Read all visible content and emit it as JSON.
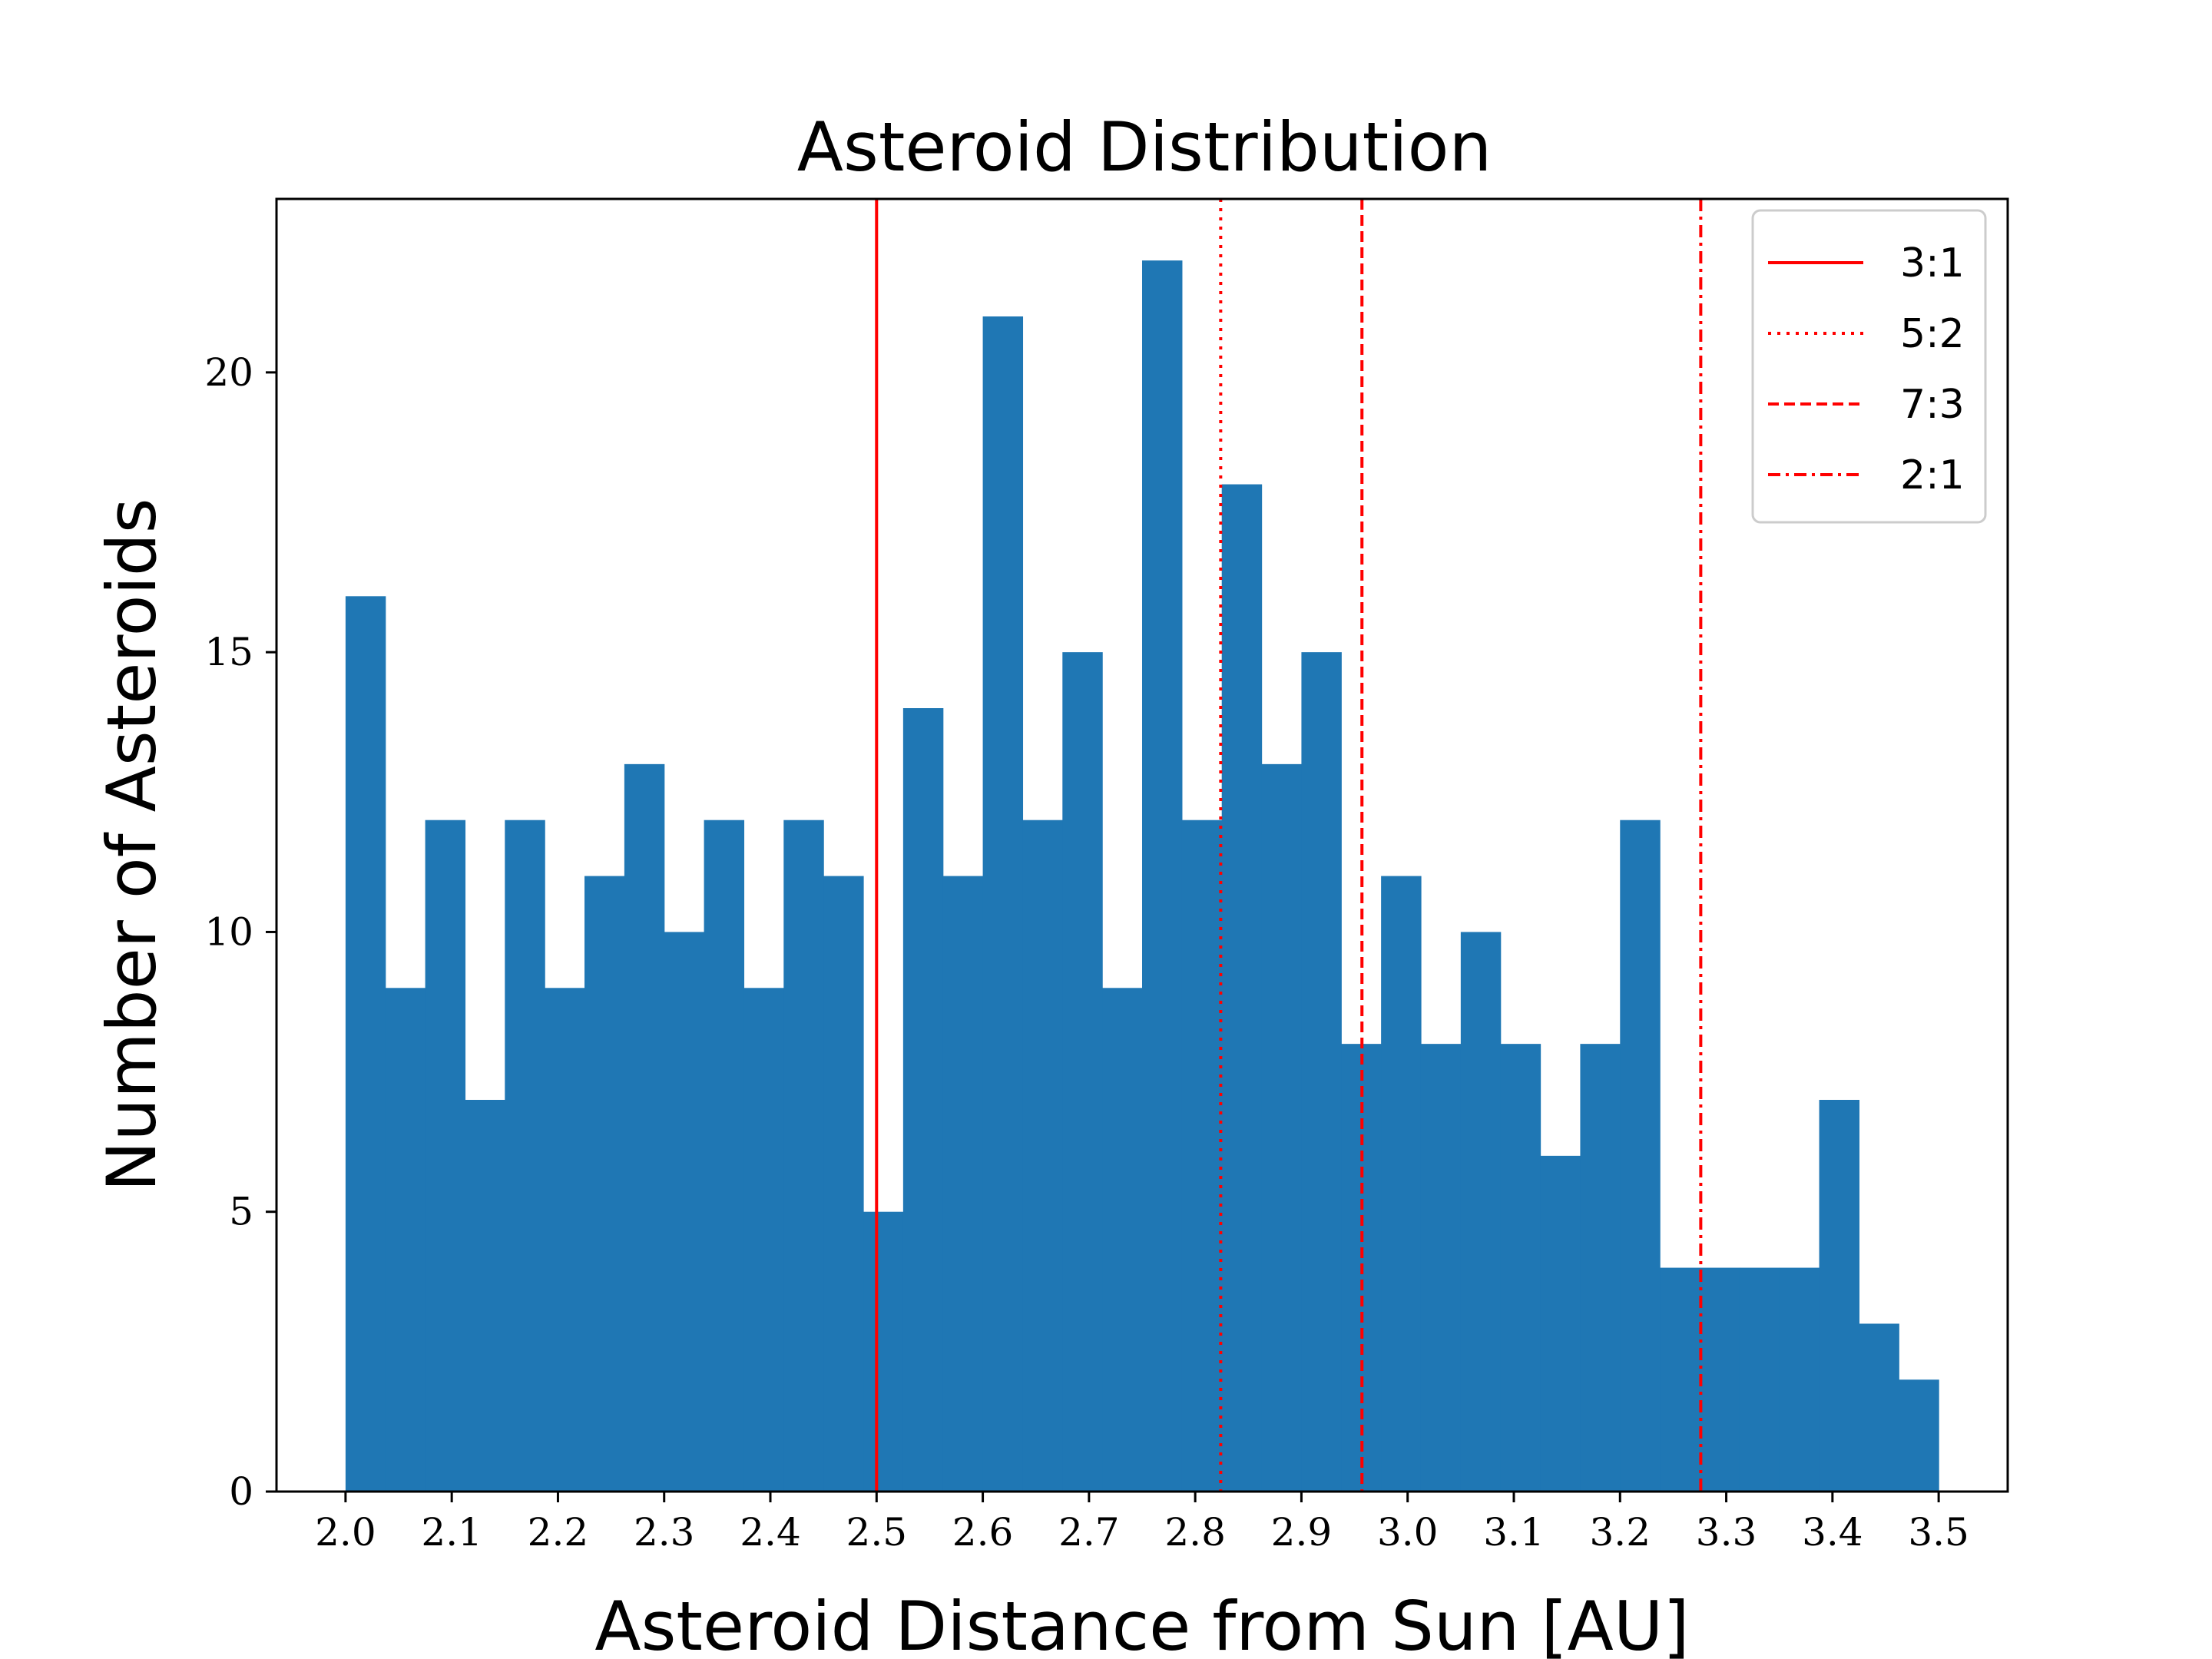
{
  "chart_data": {
    "type": "bar",
    "title": "Asteroid Distribution",
    "xlabel": "Asteroid Distance from Sun [AU]",
    "ylabel": "Number of Asteroids",
    "xlim": [
      1.935,
      3.565
    ],
    "ylim": [
      0,
      23.1
    ],
    "x_ticks": [
      "2.0",
      "2.1",
      "2.2",
      "2.3",
      "2.4",
      "2.5",
      "2.6",
      "2.7",
      "2.8",
      "2.9",
      "3.0",
      "3.1",
      "3.2",
      "3.3",
      "3.4",
      "3.5"
    ],
    "y_ticks": [
      "0",
      "5",
      "10",
      "15",
      "20"
    ],
    "bin_start": 2.0,
    "bin_end": 3.5,
    "bar_color": "#1f77b4",
    "counts": [
      16,
      9,
      12,
      7,
      12,
      9,
      11,
      13,
      10,
      12,
      9,
      12,
      11,
      5,
      14,
      11,
      21,
      12,
      15,
      9,
      22,
      12,
      18,
      13,
      15,
      8,
      11,
      8,
      10,
      8,
      6,
      8,
      12,
      4,
      4,
      4,
      4,
      7,
      3,
      2
    ],
    "grid": false,
    "legend_position": "top-right",
    "resonances": [
      {
        "name": "3:1",
        "x": 2.5,
        "style": "solid",
        "color": "#ff0000"
      },
      {
        "name": "5:2",
        "x": 2.824,
        "style": "dotted",
        "color": "#ff0000"
      },
      {
        "name": "7:3",
        "x": 2.957,
        "style": "dashed",
        "color": "#ff0000"
      },
      {
        "name": "2:1",
        "x": 3.276,
        "style": "dashdot",
        "color": "#ff0000"
      }
    ]
  }
}
